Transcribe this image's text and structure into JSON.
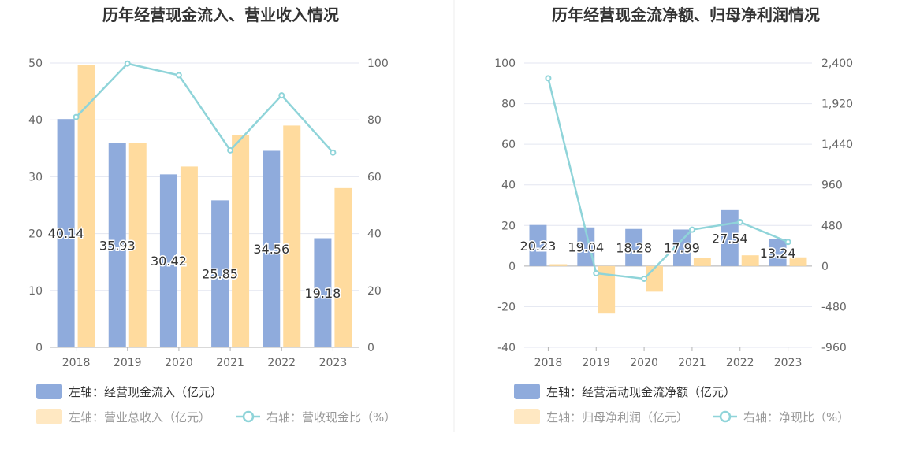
{
  "chart_data": [
    {
      "type": "bar",
      "title": "历年经营现金流入、营业收入情况",
      "categories": [
        "2018",
        "2019",
        "2020",
        "2021",
        "2022",
        "2023"
      ],
      "left_axis": {
        "ticks": [
          "0",
          "10",
          "20",
          "30",
          "40",
          "50"
        ],
        "range": [
          0,
          50
        ]
      },
      "right_axis": {
        "ticks": [
          "0",
          "20",
          "40",
          "60",
          "80",
          "100"
        ],
        "range": [
          0,
          100
        ]
      },
      "series": [
        {
          "name": "左轴：经营现金流入（亿元）",
          "kind": "bar",
          "axis": "left",
          "color": "#8fabdc",
          "values": [
            40.14,
            35.93,
            30.42,
            25.85,
            34.56,
            19.18
          ],
          "labels": [
            "40.14",
            "35.93",
            "30.42",
            "25.85",
            "34.56",
            "19.18"
          ]
        },
        {
          "name": "左轴：营业总收入（亿元）",
          "kind": "bar",
          "axis": "left",
          "color": "#ffdb9e",
          "values": [
            49.6,
            36.0,
            31.8,
            37.3,
            39.0,
            28.0
          ]
        },
        {
          "name": "右轴：营收现金比（%）",
          "kind": "line",
          "axis": "right",
          "color": "#8fd4d9",
          "values": [
            81.0,
            99.8,
            95.7,
            69.3,
            88.6,
            68.5
          ]
        }
      ],
      "legend_placement": "bottom-left",
      "grid": true
    },
    {
      "type": "bar",
      "title": "历年经营现金流净额、归母净利润情况",
      "categories": [
        "2018",
        "2019",
        "2020",
        "2021",
        "2022",
        "2023"
      ],
      "left_axis": {
        "ticks": [
          "-40",
          "-20",
          "0",
          "20",
          "40",
          "60",
          "80",
          "100"
        ],
        "range": [
          -40,
          100
        ]
      },
      "right_axis": {
        "ticks": [
          "-960",
          "-480",
          "0",
          "480",
          "960",
          "1,440",
          "1,920",
          "2,400"
        ],
        "range": [
          -960,
          2400
        ]
      },
      "series": [
        {
          "name": "左轴：经营活动现金流净额（亿元）",
          "kind": "bar",
          "axis": "left",
          "color": "#8fabdc",
          "values": [
            20.23,
            19.04,
            18.28,
            17.99,
            27.54,
            13.24
          ],
          "labels": [
            "20.23",
            "19.04",
            "18.28",
            "17.99",
            "27.54",
            "13.24"
          ]
        },
        {
          "name": "左轴：归母净利润（亿元）",
          "kind": "bar",
          "axis": "left",
          "color": "#ffdb9e",
          "values": [
            0.9,
            -23.4,
            -12.6,
            4.2,
            5.3,
            4.3
          ]
        },
        {
          "name": "右轴：净现比（%）",
          "kind": "line",
          "axis": "right",
          "color": "#8fd4d9",
          "values": [
            2220,
            -85,
            -150,
            430,
            520,
            285
          ]
        }
      ],
      "legend_placement": "bottom-left",
      "grid": true
    }
  ]
}
